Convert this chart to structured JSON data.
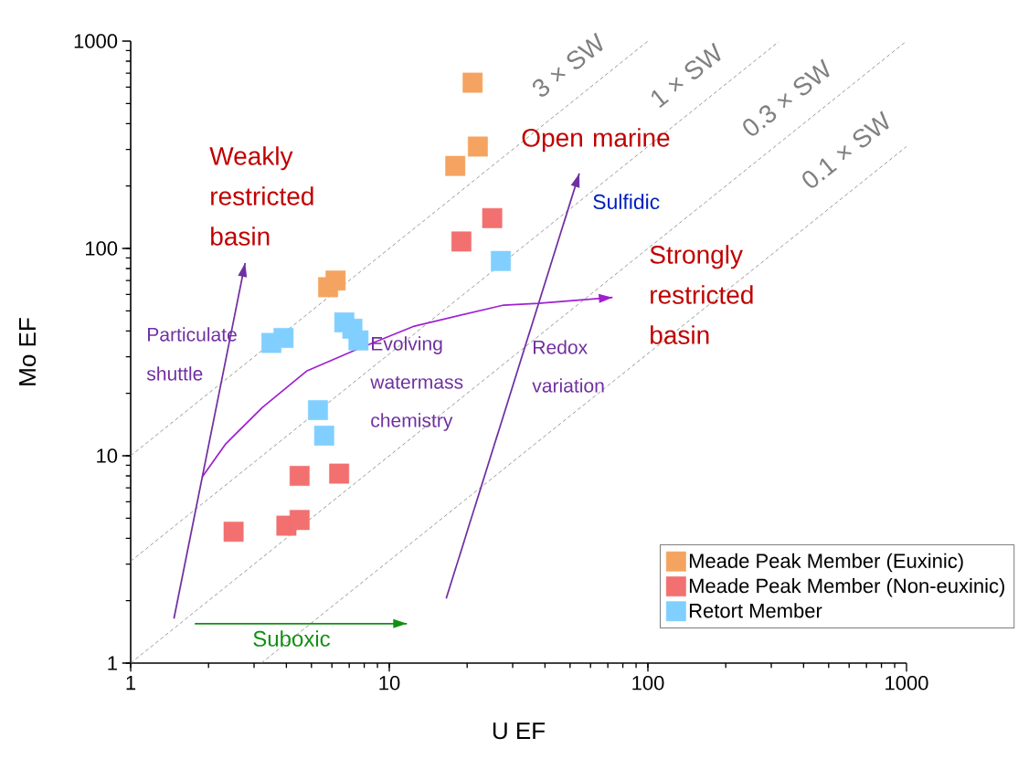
{
  "chart_data": {
    "type": "scatter",
    "xlabel": "U EF",
    "ylabel": "Mo EF",
    "log": "xy",
    "xlim": [
      1,
      1000
    ],
    "ylim": [
      1,
      1000
    ],
    "xticks": [
      1,
      10,
      100,
      1000
    ],
    "yticks": [
      1,
      10,
      100,
      1000
    ],
    "legend": "bottom right",
    "series": [
      {
        "name": "Meade Peak Member (Euxinic)",
        "color": "#f4a460",
        "marker": "square",
        "x": [
          21,
          22,
          18,
          5.8,
          6.2
        ],
        "values": [
          630,
          310,
          250,
          65,
          70
        ]
      },
      {
        "name": "Meade Peak Member (Non-euxinic)",
        "color": "#f37070",
        "marker": "square",
        "x": [
          25,
          19,
          2.5,
          4.5,
          6.4,
          4.0,
          4.5
        ],
        "values": [
          140,
          108,
          4.3,
          8,
          8.2,
          4.6,
          4.9
        ]
      },
      {
        "name": "Retort Member",
        "color": "#80cfff",
        "marker": "square",
        "x": [
          3.5,
          3.9,
          6.7,
          7.2,
          7.6,
          5.3,
          5.6,
          27
        ],
        "values": [
          35,
          37,
          44,
          41,
          36,
          16.6,
          12.5,
          87
        ]
      },
      {
        "type": "line",
        "name": "3 × SW",
        "color": "#808080",
        "line_style": "dashed",
        "x": [
          1,
          100
        ],
        "values": [
          10,
          1000
        ]
      },
      {
        "type": "line",
        "name": "1 × SW",
        "color": "#808080",
        "line_style": "dashed",
        "x": [
          1,
          320
        ],
        "values": [
          3.1,
          992
        ]
      },
      {
        "type": "line",
        "name": "0.3 × SW",
        "color": "#808080",
        "line_style": "dashed",
        "x": [
          1,
          1000
        ],
        "values": [
          1,
          1000
        ]
      },
      {
        "type": "line",
        "name": "0.1 × SW",
        "color": "#808080",
        "line_style": "dashed",
        "x": [
          3.2,
          1000
        ],
        "values": [
          1,
          310
        ]
      },
      {
        "type": "line",
        "color": "#7030a0",
        "line_style": "solid",
        "x": [
          1.47,
          2.77
        ],
        "values": [
          1.64,
          85
        ]
      },
      {
        "type": "line",
        "color": "#7030a0",
        "line_style": "solid",
        "x": [
          16.6,
          54.3
        ],
        "values": [
          2.05,
          230
        ]
      },
      {
        "type": "line",
        "color": "#a020d0",
        "line_style": "solid",
        "x": [
          1.89,
          2.33,
          3.23,
          4.81,
          7.46,
          12.5,
          27.7,
          37.7,
          73
        ],
        "values": [
          7.9,
          11.4,
          17.1,
          25.7,
          32.5,
          42.2,
          53.3,
          54.4,
          58
        ]
      },
      {
        "type": "line",
        "color": "#109010",
        "line_style": "solid",
        "x": [
          1.77,
          11.7
        ],
        "values": [
          1.55,
          1.55
        ]
      }
    ],
    "annotations": [
      "Weakly restricted basin",
      "Open marine",
      "Sulfidic",
      "Strongly restricted basin",
      "Particulate shuttle",
      "Evolving watermass chemistry",
      "Redox variation",
      "Suboxic"
    ]
  }
}
